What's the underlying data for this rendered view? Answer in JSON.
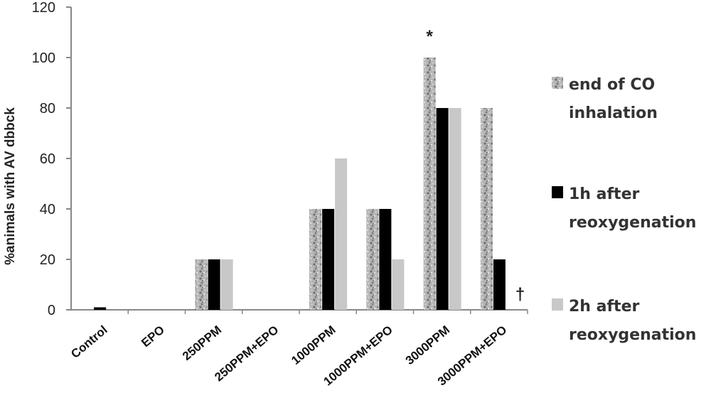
{
  "chart_data": {
    "type": "bar",
    "title": "",
    "xlabel": "",
    "ylabel": "%animals with AV dbbck",
    "ylim": [
      0,
      120
    ],
    "yticks": [
      0,
      20,
      40,
      60,
      80,
      100,
      120
    ],
    "categories": [
      "Control",
      "EPO",
      "250PPM",
      "250PPM+EPO",
      "1000PPM",
      "1000PPM+EPO",
      "3000PPM",
      "3000PPM+EPO"
    ],
    "series": [
      {
        "name": "end of CO inhalation",
        "legend_lines": [
          "end of CO",
          "inhalation"
        ],
        "color": "#9a9a9a",
        "pattern": "speckled",
        "values": [
          0,
          0,
          20,
          0,
          40,
          40,
          100,
          80
        ]
      },
      {
        "name": "1h after reoxygenation",
        "legend_lines": [
          "1h after",
          "reoxygenation"
        ],
        "color": "#000000",
        "pattern": "solid",
        "values": [
          1,
          0,
          20,
          0,
          40,
          40,
          80,
          20
        ]
      },
      {
        "name": "2h after reoxygenation",
        "legend_lines": [
          "2h after",
          "reoxygenation"
        ],
        "color": "#c8c8c8",
        "pattern": "solid",
        "values": [
          0,
          0,
          20,
          0,
          60,
          20,
          80,
          0
        ]
      }
    ],
    "annotations": [
      {
        "text": "*",
        "category": "3000PPM",
        "series": 0
      },
      {
        "text": "†",
        "category": "3000PPM+EPO",
        "series": 1
      }
    ],
    "grid": false,
    "legend_position": "right"
  }
}
